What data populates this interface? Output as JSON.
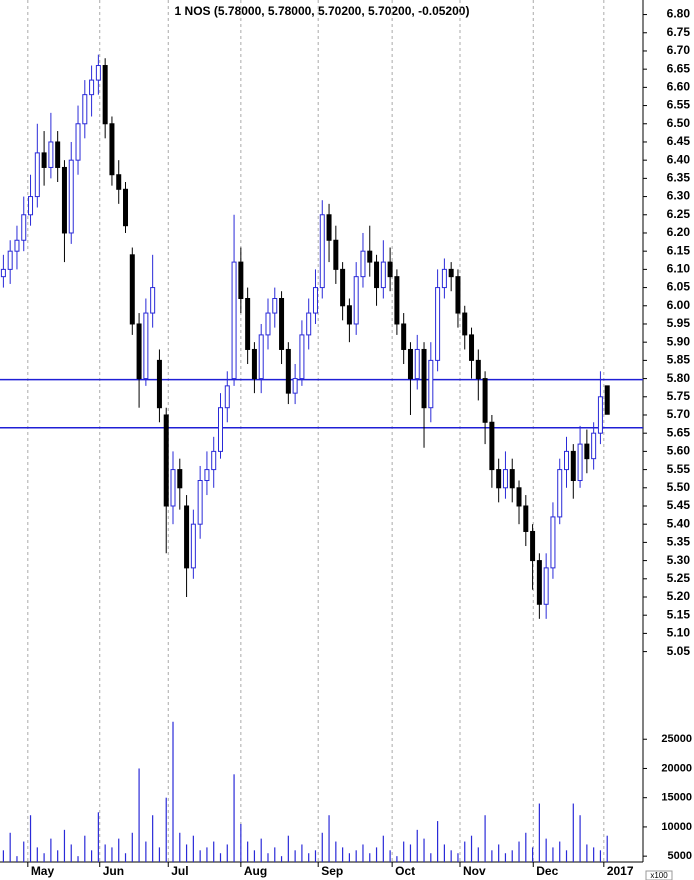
{
  "chart_data": {
    "type": "candlestick",
    "title": "1 NOS (5.78000, 5.78000, 5.70200, 5.70200, -0.05200)",
    "xlim": [
      -0.5,
      90
    ],
    "xticks": [
      {
        "value": 3.6,
        "label": "May"
      },
      {
        "value": 14.2,
        "label": "Jun"
      },
      {
        "value": 24.3,
        "label": "Jul"
      },
      {
        "value": 35.0,
        "label": "Aug"
      },
      {
        "value": 46.4,
        "label": "Sep"
      },
      {
        "value": 57.3,
        "label": "Oct"
      },
      {
        "value": 67.3,
        "label": "Nov"
      },
      {
        "value": 78.1,
        "label": "Dec"
      },
      {
        "value": 88.5,
        "label": "2017"
      }
    ],
    "ylim": [
      4.95,
      6.84
    ],
    "yticks": [
      5.05,
      {
        "value": 5.1,
        "label": "5.10"
      },
      5.15,
      {
        "value": 5.2,
        "label": "5.20"
      },
      5.25,
      {
        "value": 5.3,
        "label": "5.30"
      },
      5.35,
      {
        "value": 5.4,
        "label": "5.40"
      },
      5.45,
      {
        "value": 5.5,
        "label": "5.50"
      },
      5.55,
      {
        "value": 5.6,
        "label": "5.60"
      },
      5.65,
      {
        "value": 5.7,
        "label": "5.70"
      },
      5.75,
      {
        "value": 5.8,
        "label": "5.80"
      },
      5.85,
      {
        "value": 5.9,
        "label": "5.90"
      },
      5.95,
      {
        "value": 6.0,
        "label": "6.00"
      },
      6.05,
      {
        "value": 6.1,
        "label": "6.10"
      },
      6.15,
      {
        "value": 6.2,
        "label": "6.20"
      },
      6.25,
      {
        "value": 6.3,
        "label": "6.30"
      },
      6.35,
      {
        "value": 6.4,
        "label": "6.40"
      },
      6.45,
      {
        "value": 6.5,
        "label": "6.50"
      },
      6.55,
      {
        "value": 6.6,
        "label": "6.60"
      },
      6.65,
      {
        "value": 6.7,
        "label": "6.70"
      },
      6.75,
      {
        "value": 6.8,
        "label": "6.80"
      }
    ],
    "hlines": [
      5.797,
      5.665
    ],
    "hline_color": "#1f1fd6",
    "up_color": "#2a2ad8",
    "down_color": "#000000",
    "candles": [
      [
        6.08,
        6.14,
        6.05,
        6.1
      ],
      [
        6.1,
        6.18,
        6.06,
        6.15
      ],
      [
        6.15,
        6.22,
        6.1,
        6.18
      ],
      [
        6.18,
        6.3,
        6.15,
        6.25
      ],
      [
        6.25,
        6.36,
        6.22,
        6.3
      ],
      [
        6.3,
        6.5,
        6.27,
        6.42
      ],
      [
        6.42,
        6.48,
        6.33,
        6.38
      ],
      [
        6.38,
        6.53,
        6.35,
        6.45
      ],
      [
        6.45,
        6.48,
        6.34,
        6.38
      ],
      [
        6.38,
        6.4,
        6.12,
        6.2
      ],
      [
        6.2,
        6.45,
        6.17,
        6.4
      ],
      [
        6.4,
        6.55,
        6.36,
        6.5
      ],
      [
        6.5,
        6.62,
        6.46,
        6.58
      ],
      [
        6.58,
        6.66,
        6.52,
        6.62
      ],
      [
        6.62,
        6.69,
        6.58,
        6.66
      ],
      [
        6.66,
        6.68,
        6.46,
        6.5
      ],
      [
        6.5,
        6.52,
        6.33,
        6.36
      ],
      [
        6.36,
        6.4,
        6.28,
        6.32
      ],
      [
        6.32,
        6.34,
        6.2,
        6.22
      ],
      [
        6.14,
        6.16,
        5.92,
        5.95
      ],
      [
        5.95,
        5.98,
        5.72,
        5.8
      ],
      [
        5.8,
        6.02,
        5.78,
        5.98
      ],
      [
        5.98,
        6.14,
        5.94,
        6.05
      ],
      [
        5.85,
        5.88,
        5.68,
        5.72
      ],
      [
        5.7,
        5.72,
        5.32,
        5.45
      ],
      [
        5.45,
        5.6,
        5.4,
        5.55
      ],
      [
        5.55,
        5.58,
        5.44,
        5.5
      ],
      [
        5.45,
        5.48,
        5.2,
        5.28
      ],
      [
        5.28,
        5.44,
        5.25,
        5.4
      ],
      [
        5.4,
        5.56,
        5.36,
        5.52
      ],
      [
        5.52,
        5.6,
        5.48,
        5.55
      ],
      [
        5.55,
        5.64,
        5.5,
        5.6
      ],
      [
        5.6,
        5.76,
        5.58,
        5.72
      ],
      [
        5.72,
        5.82,
        5.68,
        5.78
      ],
      [
        5.8,
        6.25,
        5.78,
        6.12
      ],
      [
        6.12,
        6.16,
        5.98,
        6.02
      ],
      [
        6.02,
        6.05,
        5.84,
        5.88
      ],
      [
        5.88,
        5.9,
        5.76,
        5.8
      ],
      [
        5.8,
        5.95,
        5.76,
        5.92
      ],
      [
        5.92,
        6.02,
        5.88,
        5.98
      ],
      [
        5.98,
        6.05,
        5.94,
        6.02
      ],
      [
        6.02,
        6.04,
        5.84,
        5.88
      ],
      [
        5.88,
        5.9,
        5.73,
        5.76
      ],
      [
        5.76,
        5.84,
        5.73,
        5.8
      ],
      [
        5.8,
        5.96,
        5.78,
        5.92
      ],
      [
        5.92,
        6.02,
        5.88,
        5.98
      ],
      [
        5.98,
        6.1,
        5.95,
        6.05
      ],
      [
        6.05,
        6.29,
        6.02,
        6.25
      ],
      [
        6.25,
        6.28,
        6.12,
        6.18
      ],
      [
        6.18,
        6.22,
        6.06,
        6.1
      ],
      [
        6.1,
        6.12,
        5.96,
        6.0
      ],
      [
        6.0,
        6.02,
        5.9,
        5.95
      ],
      [
        5.95,
        6.12,
        5.92,
        6.08
      ],
      [
        6.08,
        6.2,
        6.05,
        6.15
      ],
      [
        6.15,
        6.22,
        6.08,
        6.12
      ],
      [
        6.12,
        6.14,
        6.0,
        6.05
      ],
      [
        6.05,
        6.18,
        6.02,
        6.12
      ],
      [
        6.12,
        6.16,
        6.04,
        6.08
      ],
      [
        6.08,
        6.1,
        5.92,
        5.95
      ],
      [
        5.95,
        5.98,
        5.84,
        5.88
      ],
      [
        5.88,
        5.9,
        5.7,
        5.8
      ],
      [
        5.8,
        5.92,
        5.77,
        5.88
      ],
      [
        5.88,
        5.9,
        5.61,
        5.72
      ],
      [
        5.72,
        5.9,
        5.68,
        5.85
      ],
      [
        5.85,
        6.1,
        5.82,
        6.05
      ],
      [
        6.05,
        6.13,
        6.02,
        6.1
      ],
      [
        6.1,
        6.12,
        6.04,
        6.08
      ],
      [
        6.08,
        6.1,
        5.94,
        5.98
      ],
      [
        5.98,
        6.0,
        5.88,
        5.92
      ],
      [
        5.92,
        5.94,
        5.8,
        5.85
      ],
      [
        5.85,
        5.88,
        5.74,
        5.8
      ],
      [
        5.8,
        5.82,
        5.62,
        5.68
      ],
      [
        5.68,
        5.7,
        5.5,
        5.55
      ],
      [
        5.55,
        5.58,
        5.46,
        5.5
      ],
      [
        5.5,
        5.6,
        5.47,
        5.55
      ],
      [
        5.55,
        5.58,
        5.46,
        5.5
      ],
      [
        5.5,
        5.52,
        5.4,
        5.45
      ],
      [
        5.45,
        5.48,
        5.34,
        5.38
      ],
      [
        5.38,
        5.4,
        5.22,
        5.3
      ],
      [
        5.3,
        5.32,
        5.14,
        5.18
      ],
      [
        5.18,
        5.32,
        5.14,
        5.28
      ],
      [
        5.28,
        5.46,
        5.25,
        5.42
      ],
      [
        5.42,
        5.58,
        5.4,
        5.55
      ],
      [
        5.55,
        5.64,
        5.5,
        5.6
      ],
      [
        5.6,
        5.62,
        5.47,
        5.52
      ],
      [
        5.52,
        5.67,
        5.5,
        5.62
      ],
      [
        5.62,
        5.66,
        5.54,
        5.58
      ],
      [
        5.58,
        5.68,
        5.55,
        5.65
      ],
      [
        5.65,
        5.82,
        5.62,
        5.75
      ],
      [
        5.78,
        5.78,
        5.702,
        5.702
      ]
    ],
    "volume": [
      6000,
      9000,
      5000,
      7500,
      12000,
      6500,
      5500,
      8000,
      6000,
      9500,
      7000,
      5000,
      8500,
      6000,
      12500,
      7000,
      6500,
      8000,
      5500,
      9000,
      20000,
      7500,
      12000,
      6500,
      15000,
      28000,
      9000,
      7000,
      8500,
      6000,
      6500,
      7500,
      5500,
      7000,
      19000,
      10500,
      7500,
      6000,
      8000,
      5500,
      6500,
      5000,
      8500,
      6000,
      7000,
      5500,
      6000,
      9000,
      12000,
      7500,
      6500,
      5500,
      6000,
      7000,
      5500,
      6500,
      8500,
      6000,
      5000,
      7500,
      7000,
      9500,
      8000,
      5500,
      11000,
      7000,
      6000,
      5500,
      7500,
      8500,
      6500,
      12000,
      6000,
      7000,
      5500,
      6000,
      7500,
      9000,
      6500,
      14000,
      8000,
      6500,
      7500,
      6000,
      14000,
      12000,
      7000,
      6500,
      6000,
      8500
    ],
    "volume_color": "#2a2ad8",
    "volume_ylim": [
      4000,
      30000
    ],
    "volume_yticks": [
      5000,
      10000,
      15000,
      20000,
      25000
    ],
    "volume_unit": "x100"
  }
}
